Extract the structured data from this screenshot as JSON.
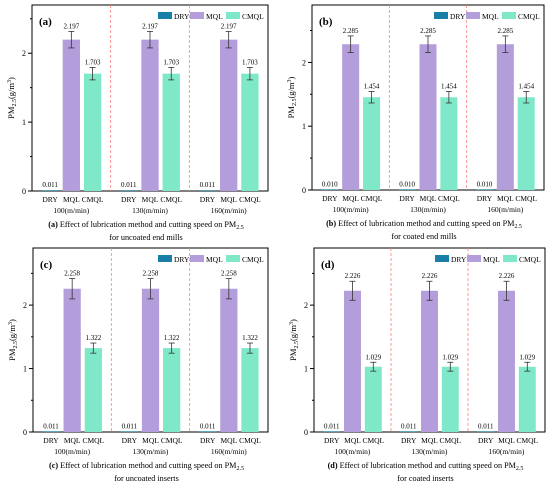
{
  "colors": {
    "dry": "#1a7fa6",
    "mql": "#b39ddb",
    "cmql": "#7ee8c8",
    "divider": "#ff7f7f",
    "axis": "#000000"
  },
  "ylabel_main": "PM",
  "ylabel_sub": "2.5",
  "ylabel_unit": "(g/m",
  "ylabel_sup": "3",
  "ylabel_close": ")",
  "legend": [
    "DRY",
    "MQL",
    "CMQL"
  ],
  "chart_data": [
    {
      "type": "bar",
      "tag": "(a)",
      "categories": [
        "100(m/min)",
        "130(m/min)",
        "160(m/min)"
      ],
      "subcategories": [
        "DRY",
        "MQL",
        "CMQL"
      ],
      "series": [
        {
          "name": "DRY",
          "values": [
            0.011,
            0.011,
            0.011
          ]
        },
        {
          "name": "MQL",
          "values": [
            2.197,
            2.197,
            2.197
          ]
        },
        {
          "name": "CMQL",
          "values": [
            1.703,
            1.703,
            1.703
          ]
        }
      ],
      "value_labels": {
        "DRY": [
          "0.011",
          "0.011",
          "0.011"
        ],
        "MQL": [
          "2.197",
          "2.197",
          "2.197"
        ],
        "CMQL": [
          "1.703",
          "1.703",
          "1.703"
        ]
      },
      "errors": {
        "DRY": [
          0,
          0,
          0
        ],
        "MQL": [
          0.12,
          0.12,
          0.12
        ],
        "CMQL": [
          0.09,
          0.09,
          0.09
        ]
      },
      "ylim": [
        0,
        2.7
      ],
      "yticks": [
        0,
        1,
        2
      ],
      "caption_bold": "(a)",
      "caption": " Effect of lubrication method and cutting speed on PM",
      "caption_sub": "2.5",
      "caption_line2": "for uncoated end mills",
      "legend_position": "top-right"
    },
    {
      "type": "bar",
      "tag": "(b)",
      "categories": [
        "100(m/min)",
        "130(m/min)",
        "160(m/min)"
      ],
      "subcategories": [
        "DRY",
        "MQL",
        "CMQL"
      ],
      "series": [
        {
          "name": "DRY",
          "values": [
            0.01,
            0.01,
            0.01
          ]
        },
        {
          "name": "MQL",
          "values": [
            2.285,
            2.285,
            2.285
          ]
        },
        {
          "name": "CMQL",
          "values": [
            1.454,
            1.454,
            1.454
          ]
        }
      ],
      "value_labels": {
        "DRY": [
          "0.010",
          "0.010",
          "0.010"
        ],
        "MQL": [
          "2.285",
          "2.285",
          "2.285"
        ],
        "CMQL": [
          "1.454",
          "1.454",
          "1.454"
        ]
      },
      "errors": {
        "DRY": [
          0,
          0,
          0
        ],
        "MQL": [
          0.13,
          0.13,
          0.13
        ],
        "CMQL": [
          0.09,
          0.09,
          0.09
        ]
      },
      "ylim": [
        0,
        2.9
      ],
      "yticks": [
        0,
        1,
        2
      ],
      "caption_bold": "(b)",
      "caption": " Effect of lubrication method and cutting speed on PM",
      "caption_sub": "2.5",
      "caption_line2": "for coated end mills",
      "legend_position": "top-right"
    },
    {
      "type": "bar",
      "tag": "(c)",
      "categories": [
        "100(m/min)",
        "130(m/min)",
        "160(m/min)"
      ],
      "subcategories": [
        "DRY",
        "MQL",
        "CMQL"
      ],
      "series": [
        {
          "name": "DRY",
          "values": [
            0.011,
            0.011,
            0.011
          ]
        },
        {
          "name": "MQL",
          "values": [
            2.258,
            2.258,
            2.258
          ]
        },
        {
          "name": "CMQL",
          "values": [
            1.322,
            1.322,
            1.322
          ]
        }
      ],
      "value_labels": {
        "DRY": [
          "0.011",
          "0.011",
          "0.011"
        ],
        "MQL": [
          "2.258",
          "2.258",
          "2.258"
        ],
        "CMQL": [
          "1.322",
          "1.322",
          "1.322"
        ]
      },
      "errors": {
        "DRY": [
          0,
          0,
          0
        ],
        "MQL": [
          0.16,
          0.16,
          0.16
        ],
        "CMQL": [
          0.08,
          0.08,
          0.08
        ]
      },
      "ylim": [
        0,
        2.9
      ],
      "yticks": [
        0,
        1,
        2
      ],
      "caption_bold": "(c)",
      "caption": " Effect of lubrication method and cutting speed on PM",
      "caption_sub": "2.5",
      "caption_line2": "for uncoated inserts",
      "legend_position": "top-right"
    },
    {
      "type": "bar",
      "tag": "(d)",
      "categories": [
        "100(m/min)",
        "130(m/min)",
        "160(m/min)"
      ],
      "subcategories": [
        "DRY",
        "MQL",
        "CMQL"
      ],
      "series": [
        {
          "name": "DRY",
          "values": [
            0.011,
            0.011,
            0.011
          ]
        },
        {
          "name": "MQL",
          "values": [
            2.226,
            2.226,
            2.226
          ]
        },
        {
          "name": "CMQL",
          "values": [
            1.029,
            1.029,
            1.029
          ]
        }
      ],
      "value_labels": {
        "DRY": [
          "0.011",
          "0.011",
          "0.011"
        ],
        "MQL": [
          "2.226",
          "2.226",
          "2.226"
        ],
        "CMQL": [
          "1.029",
          "1.029",
          "1.029"
        ]
      },
      "errors": {
        "DRY": [
          0,
          0,
          0
        ],
        "MQL": [
          0.15,
          0.15,
          0.15
        ],
        "CMQL": [
          0.07,
          0.07,
          0.07
        ]
      },
      "ylim": [
        0,
        2.9
      ],
      "yticks": [
        0,
        1,
        2
      ],
      "caption_bold": "(d)",
      "caption": " Effect of lubrication method and cutting speed on PM",
      "caption_sub": "2.5",
      "caption_line2": "for coated inserts",
      "legend_position": "top-right"
    }
  ]
}
